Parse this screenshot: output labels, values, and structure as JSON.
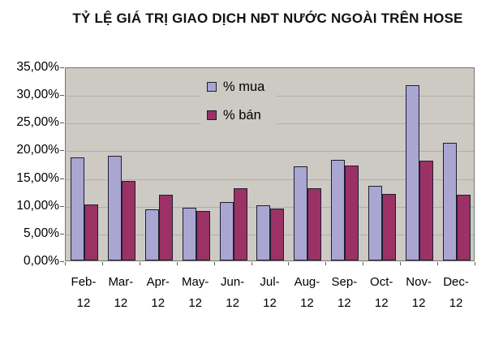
{
  "title": "TỶ LỆ GIÁ TRỊ GIAO DỊCH NĐT NƯỚC NGOÀI TRÊN HOSE",
  "chart_data": {
    "type": "bar",
    "categories": [
      "Feb-12",
      "Mar-12",
      "Apr-12",
      "May-12",
      "Jun-12",
      "Jul-12",
      "Aug-12",
      "Sep-12",
      "Oct-12",
      "Nov-12",
      "Dec-12"
    ],
    "series": [
      {
        "name": "% mua",
        "color": "#a9a6d2",
        "values": [
          18.6,
          18.9,
          9.2,
          9.5,
          10.5,
          9.9,
          17.0,
          18.2,
          13.4,
          31.7,
          21.3
        ]
      },
      {
        "name": "% bán",
        "color": "#9b3164",
        "values": [
          10.1,
          14.3,
          11.9,
          9.0,
          13.1,
          9.4,
          13.0,
          17.1,
          12.0,
          18.0,
          11.8
        ]
      }
    ],
    "ylim": [
      0,
      35
    ],
    "ytick_labels_top_to_bottom": [
      "35,00%",
      "30,00%",
      "25,00%",
      "20,00%",
      "15,00%",
      "10,00%",
      "5,00%",
      "0,00%"
    ],
    "grid": true,
    "legend_position": "inside-top-center"
  },
  "colors": {
    "plot_background": "#cdcac4",
    "gridline": "#b2afaa",
    "bar_border": "#1e1e30",
    "plot_border": "#76736d",
    "mua_fill": "#a9a6d2",
    "ban_fill": "#9b3164"
  }
}
